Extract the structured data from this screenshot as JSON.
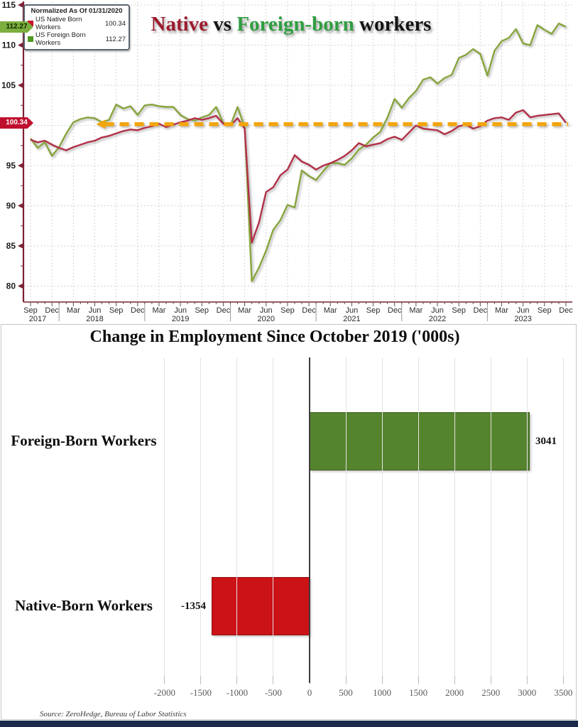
{
  "source_note": "Source: ZeroHedge, Bureau of Labor Statistics",
  "chart_data": [
    {
      "type": "line",
      "title_parts": [
        {
          "text": "Native",
          "color": "#9c1b2e"
        },
        {
          "text": " vs ",
          "color": "#141414"
        },
        {
          "text": "Foreign-born",
          "color": "#2f9e41"
        },
        {
          "text": " workers",
          "color": "#141414"
        }
      ],
      "legend": {
        "title": "Normalized As Of 01/31/2020",
        "entries": [
          {
            "label": "US Native Born Workers",
            "value": "100.34",
            "swatch": "#c8102e"
          },
          {
            "label": "US Foreign Born Workers",
            "value": "112.27",
            "swatch": "#4f9a21"
          }
        ]
      },
      "x_range": "Sep 2017 - Dec 2023 (monthly)",
      "xtick_months": [
        "Sep",
        "Dec",
        "Mar",
        "Jun",
        "Sep",
        "Dec",
        "Mar",
        "Jun",
        "Sep",
        "Dec",
        "Mar",
        "Jun",
        "Sep",
        "Dec",
        "Mar",
        "Jun",
        "Sep",
        "Dec",
        "Mar",
        "Jun",
        "Sep",
        "Dec",
        "Mar",
        "Jun",
        "Sep",
        "Dec"
      ],
      "year_labels": [
        {
          "label": "2017",
          "month_index": 1
        },
        {
          "label": "2018",
          "month_index": 9
        },
        {
          "label": "2019",
          "month_index": 21
        },
        {
          "label": "2020",
          "month_index": 33
        },
        {
          "label": "2021",
          "month_index": 45
        },
        {
          "label": "2022",
          "month_index": 57
        },
        {
          "label": "2023",
          "month_index": 69
        }
      ],
      "yticks": [
        80,
        85,
        90,
        95,
        100,
        105,
        110,
        115
      ],
      "ylim": [
        77.5,
        115.4
      ],
      "grid": true,
      "baseline": {
        "value": 100.15,
        "color": "#f2a50c",
        "style": "dashed"
      },
      "last_value_tags": [
        {
          "value": "112.27",
          "bg": "#7cae3e",
          "fg": "#102500"
        },
        {
          "value": "100.34",
          "bg": "#c00f2e",
          "fg": "#ffffff"
        }
      ],
      "series": [
        {
          "name": "US Native Born Workers",
          "color": "#b13048",
          "values": [
            98.2,
            97.9,
            98.1,
            97.6,
            97.2,
            96.9,
            97.3,
            97.6,
            97.9,
            98.1,
            98.5,
            98.7,
            99.0,
            99.3,
            99.5,
            99.4,
            99.7,
            99.9,
            100.2,
            99.8,
            100.1,
            100.4,
            100.6,
            100.9,
            100.7,
            100.9,
            101.2,
            100.2,
            100.0,
            100.9,
            99.6,
            85.4,
            87.9,
            91.7,
            92.3,
            93.8,
            94.5,
            96.3,
            95.5,
            95.1,
            94.5,
            95.0,
            95.3,
            95.7,
            96.2,
            96.9,
            97.8,
            97.4,
            97.6,
            97.8,
            98.3,
            98.6,
            98.2,
            99.1,
            100.0,
            99.6,
            99.5,
            99.4,
            98.9,
            99.3,
            99.9,
            100.1,
            99.6,
            99.9,
            100.6,
            100.9,
            101.0,
            100.7,
            101.6,
            101.9,
            101.0,
            101.2,
            101.3,
            101.4,
            101.5,
            100.34
          ]
        },
        {
          "name": "US Foreign Born Workers",
          "color": "#87a53c",
          "values": [
            98.4,
            97.2,
            97.9,
            96.2,
            97.3,
            99.0,
            100.4,
            100.8,
            101.0,
            100.9,
            100.4,
            100.7,
            102.6,
            102.1,
            102.4,
            101.3,
            102.5,
            102.6,
            102.4,
            102.3,
            102.3,
            101.3,
            100.8,
            100.6,
            101.0,
            101.3,
            102.3,
            100.3,
            100.0,
            102.3,
            99.8,
            80.6,
            82.3,
            84.4,
            87.0,
            88.2,
            90.1,
            89.8,
            94.4,
            93.7,
            93.2,
            94.3,
            95.3,
            95.3,
            95.1,
            95.9,
            97.0,
            97.6,
            98.5,
            99.2,
            101.0,
            103.3,
            102.2,
            103.4,
            104.3,
            105.7,
            106.0,
            105.2,
            105.9,
            106.3,
            108.4,
            108.8,
            109.5,
            108.9,
            106.2,
            109.3,
            110.5,
            110.9,
            112.0,
            110.2,
            110.0,
            112.5,
            111.9,
            111.4,
            112.7,
            112.27
          ]
        }
      ]
    },
    {
      "type": "bar",
      "orientation": "horizontal",
      "title": "Change in Employment Since October 2019 ('000s)",
      "categories": [
        "Foreign-Born Workers",
        "Native-Born Workers"
      ],
      "values": [
        3041,
        -1354
      ],
      "bar_colors": [
        "#55842e",
        "#cb1216"
      ],
      "xticks": [
        -2000,
        -1500,
        -1000,
        -500,
        0,
        500,
        1000,
        1500,
        2000,
        2500,
        3000,
        3500
      ],
      "xlim": [
        -2250,
        3725
      ],
      "grid": true
    }
  ]
}
